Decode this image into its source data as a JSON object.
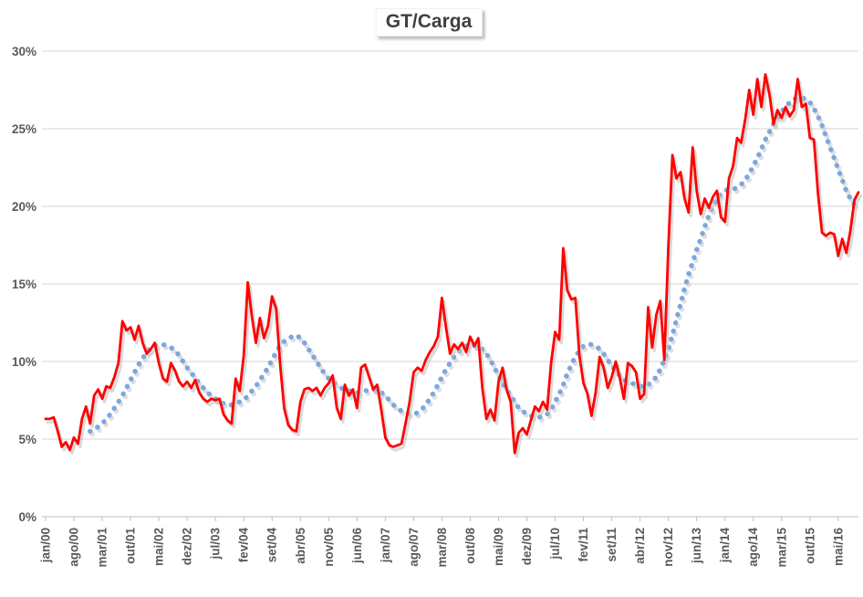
{
  "title": "GT/Carga",
  "colors": {
    "series_red": "#FF0000",
    "series_blue_dotted": "#7DA7DC",
    "gridline": "#d6d6d6",
    "axis_line": "#bfbfbf",
    "tick_label": "#595959",
    "title_text": "#3f3f3f",
    "shadow": "#c3c3c3",
    "background": "#ffffff"
  },
  "chart_data": {
    "type": "line",
    "title": "GT/Carga",
    "xlabel": "",
    "ylabel": "",
    "ylim": [
      0,
      30
    ],
    "y_tick_step": 5,
    "y_tick_labels": [
      "0%",
      "5%",
      "10%",
      "15%",
      "20%",
      "25%",
      "30%"
    ],
    "grid": "horizontal",
    "legend": "none",
    "x_start": "jan/00",
    "x_end": "out/16",
    "x_tick_step_months": 7,
    "x_tick_labels": [
      "jan/00",
      "ago/00",
      "mar/01",
      "out/01",
      "mai/02",
      "dez/02",
      "jul/03",
      "fev/04",
      "set/04",
      "abr/05",
      "nov/05",
      "jun/06",
      "jan/07",
      "ago/07",
      "mar/08",
      "out/08",
      "mai/09",
      "dez/09",
      "jul/10",
      "fev/11",
      "set/11",
      "abr/12",
      "nov/12",
      "jun/13",
      "jan/14",
      "ago/14",
      "mar/15",
      "out/15",
      "mai/16"
    ],
    "series": [
      {
        "name": "red-solid-line",
        "style": "solid",
        "color": "#FF0000",
        "values": [
          6.3,
          6.3,
          6.4,
          5.5,
          4.5,
          4.8,
          4.3,
          5.1,
          4.7,
          6.3,
          7.1,
          6.0,
          7.8,
          8.2,
          7.6,
          8.4,
          8.3,
          9.0,
          9.9,
          12.6,
          12.0,
          12.2,
          11.4,
          12.3,
          11.2,
          10.5,
          10.8,
          11.2,
          9.9,
          8.9,
          8.7,
          9.9,
          9.4,
          8.7,
          8.4,
          8.7,
          8.3,
          8.8,
          8.0,
          7.6,
          7.4,
          7.6,
          7.5,
          7.6,
          6.6,
          6.2,
          6.0,
          8.9,
          8.1,
          10.4,
          15.1,
          12.9,
          11.2,
          12.8,
          11.5,
          12.3,
          14.2,
          13.4,
          9.8,
          7.0,
          5.9,
          5.6,
          5.5,
          7.4,
          8.2,
          8.3,
          8.1,
          8.3,
          7.8,
          8.3,
          8.6,
          9.1,
          7.0,
          6.3,
          8.5,
          7.8,
          8.2,
          7.0,
          9.6,
          9.8,
          9.0,
          8.2,
          8.5,
          6.9,
          5.1,
          4.6,
          4.5,
          4.6,
          4.7,
          6.0,
          7.4,
          9.3,
          9.6,
          9.4,
          10.1,
          10.6,
          11.0,
          11.6,
          14.1,
          12.2,
          10.5,
          11.1,
          10.8,
          11.2,
          10.6,
          11.6,
          11.0,
          11.5,
          8.3,
          6.3,
          6.9,
          6.2,
          8.7,
          9.6,
          8.2,
          7.4,
          4.1,
          5.4,
          5.7,
          5.3,
          6.2,
          7.1,
          6.8,
          7.4,
          6.9,
          9.9,
          11.9,
          11.4,
          17.3,
          14.6,
          14.0,
          14.1,
          10.4,
          8.6,
          7.9,
          6.5,
          8.0,
          10.3,
          9.6,
          8.3,
          9.0,
          10.0,
          8.9,
          7.6,
          9.9,
          9.7,
          9.3,
          7.6,
          7.9,
          13.5,
          10.9,
          13.0,
          13.9,
          10.1,
          17.5,
          23.3,
          21.8,
          22.2,
          20.5,
          19.6,
          23.8,
          21.0,
          19.5,
          20.5,
          19.9,
          20.6,
          21.0,
          19.3,
          19.0,
          21.8,
          22.6,
          24.4,
          24.1,
          25.6,
          27.5,
          25.9,
          28.2,
          26.4,
          28.5,
          27.2,
          25.3,
          26.2,
          25.7,
          26.4,
          25.8,
          26.2,
          28.2,
          26.4,
          26.6,
          24.4,
          24.3,
          20.8,
          18.3,
          18.1,
          18.3,
          18.2,
          16.8,
          17.9,
          17.0,
          18.4,
          20.4,
          20.9
        ]
      },
      {
        "name": "blue-dotted-line",
        "style": "dotted",
        "color": "#7DA7DC",
        "values": [
          null,
          null,
          null,
          null,
          null,
          null,
          null,
          null,
          null,
          null,
          null,
          5.5,
          5.6,
          5.8,
          6.0,
          6.3,
          6.6,
          7.0,
          7.4,
          7.8,
          8.3,
          8.8,
          9.3,
          9.8,
          10.2,
          10.6,
          10.9,
          11.0,
          11.1,
          11.1,
          11.0,
          10.9,
          10.7,
          10.4,
          10.0,
          9.6,
          9.3,
          8.9,
          8.6,
          8.3,
          8.0,
          7.8,
          7.6,
          7.4,
          7.3,
          7.2,
          7.2,
          7.3,
          7.4,
          7.5,
          7.8,
          8.1,
          8.4,
          8.8,
          9.2,
          9.6,
          10.1,
          10.6,
          11.0,
          11.3,
          11.5,
          11.6,
          11.7,
          11.5,
          11.2,
          10.8,
          10.4,
          10.0,
          9.6,
          9.2,
          8.9,
          8.7,
          8.5,
          8.3,
          8.2,
          8.1,
          8.1,
          8.0,
          8.0,
          8.1,
          8.2,
          8.2,
          8.1,
          8.0,
          7.8,
          7.5,
          7.2,
          7.0,
          6.8,
          6.7,
          6.6,
          6.6,
          6.7,
          6.9,
          7.2,
          7.6,
          8.0,
          8.5,
          9.0,
          9.5,
          9.9,
          10.3,
          10.6,
          10.8,
          11.0,
          11.0,
          11.0,
          11.0,
          10.8,
          10.5,
          10.1,
          9.6,
          9.1,
          8.6,
          8.2,
          7.8,
          7.4,
          7.0,
          6.8,
          6.6,
          6.5,
          6.4,
          6.4,
          6.5,
          6.6,
          6.9,
          7.4,
          7.9,
          8.5,
          9.2,
          9.8,
          10.3,
          10.7,
          11.0,
          11.1,
          11.1,
          11.0,
          10.8,
          10.5,
          10.1,
          9.7,
          9.4,
          9.1,
          8.8,
          8.7,
          8.6,
          8.5,
          8.4,
          8.4,
          8.5,
          8.7,
          9.0,
          9.5,
          10.1,
          10.8,
          11.7,
          12.7,
          13.7,
          14.7,
          15.6,
          16.4,
          17.2,
          17.9,
          18.7,
          19.4,
          20.0,
          20.5,
          20.8,
          21.0,
          21.1,
          21.1,
          21.2,
          21.4,
          21.7,
          22.1,
          22.6,
          23.1,
          23.7,
          24.3,
          24.8,
          25.3,
          25.7,
          26.1,
          26.4,
          26.7,
          26.9,
          27.0,
          27.0,
          26.9,
          26.7,
          26.3,
          25.8,
          25.2,
          24.5,
          23.8,
          23.1,
          22.4,
          21.7,
          21.0,
          20.5,
          20.1,
          19.8
        ]
      }
    ]
  }
}
